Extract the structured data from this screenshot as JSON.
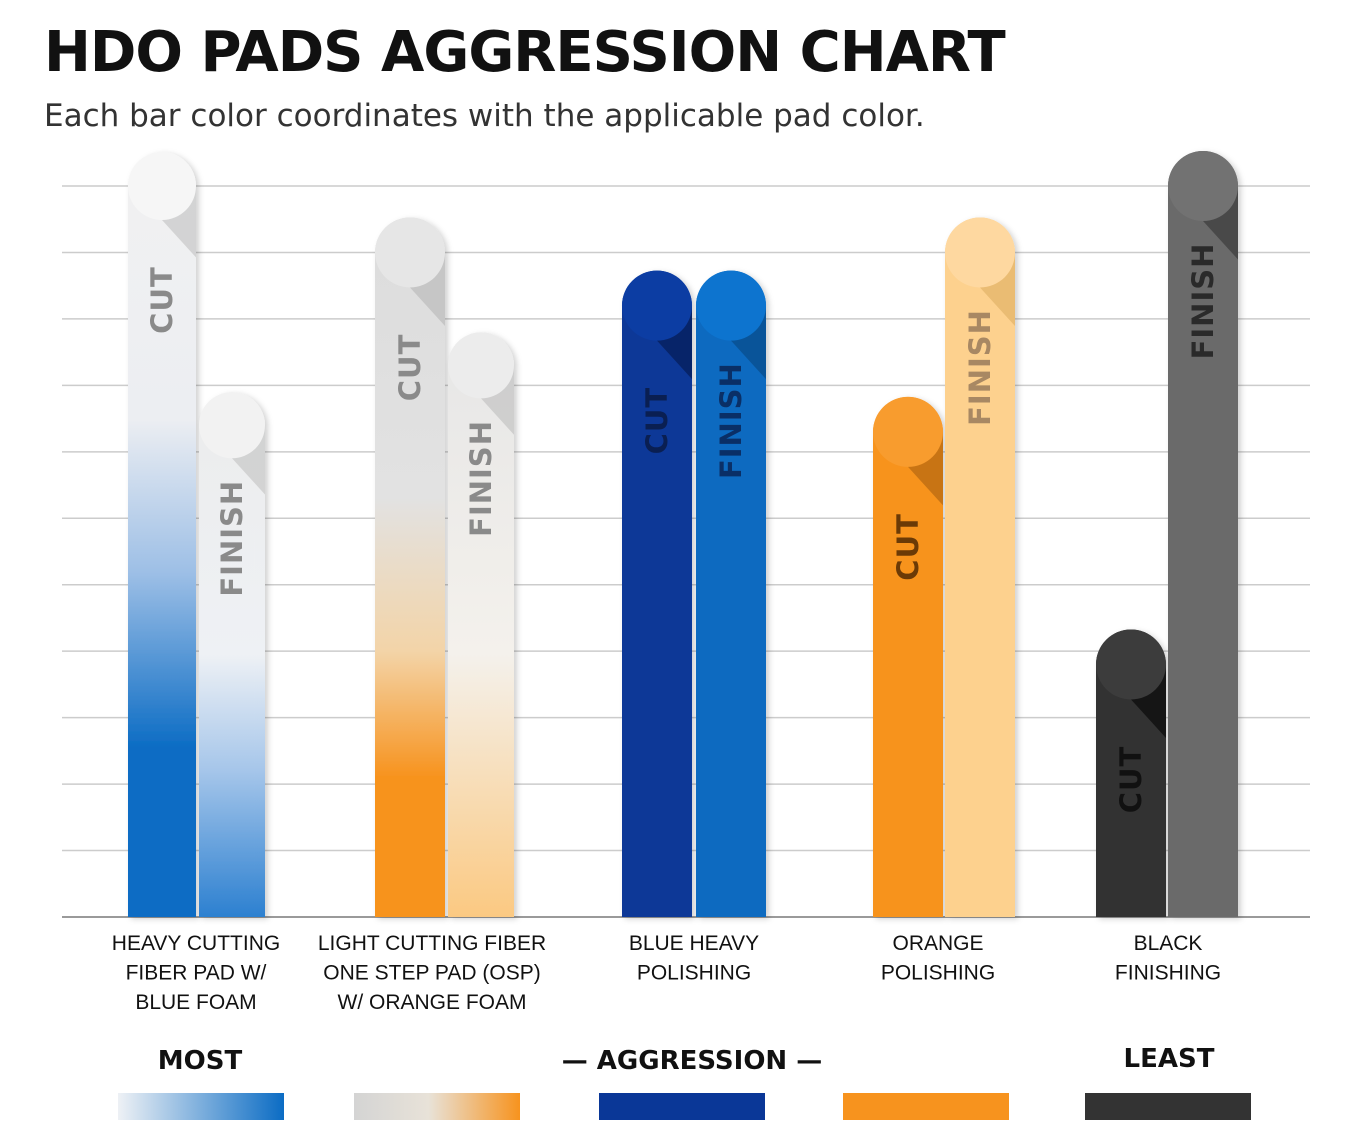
{
  "title": "HDO PADS AGGRESSION CHART",
  "subtitle": "Each bar color coordinates with the applicable pad color.",
  "colors": {
    "blue_gradient": "#0b6cc4",
    "osp_gradient": "#f7931e",
    "blue_heavy": "#0a3797",
    "blue_light": "#0a6bc0",
    "orange": "#f7931e",
    "orange_light": "#fdd18e",
    "black": "#333333",
    "gray": "#6a6a6a",
    "gridline": "#cccccc"
  },
  "chart_data": {
    "type": "bar",
    "categories": [
      "HEAVY CUTTING\nFIBER PAD W/\nBLUE FOAM",
      "LIGHT CUTTING FIBER\nONE STEP PAD (OSP)\nW/ ORANGE FOAM",
      "BLUE HEAVY\nPOLISHING",
      "ORANGE\nPOLISHING",
      "BLACK\nFINISHING"
    ],
    "series": [
      {
        "name": "CUT",
        "values": [
          11,
          10,
          9.2,
          7.3,
          3.8
        ]
      },
      {
        "name": "FINISH",
        "values": [
          7.4,
          8.3,
          9.2,
          10,
          11
        ]
      }
    ],
    "ylim": [
      0,
      11
    ],
    "grid": true,
    "legend": {
      "most": "MOST",
      "aggression": "— AGGRESSION —",
      "least": "LEAST",
      "swatches": [
        "blue-gradient",
        "gray-orange-gradient",
        "dark-blue",
        "orange",
        "black"
      ]
    }
  }
}
